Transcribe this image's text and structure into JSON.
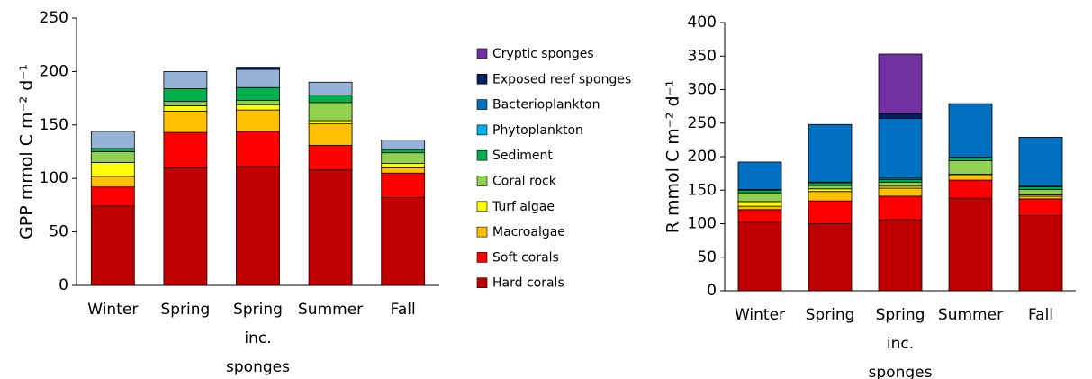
{
  "chart_data": [
    {
      "type": "stacked_bar",
      "ylabel": "GPP mmol C m⁻² d⁻¹",
      "categories": [
        "Winter",
        "Spring",
        "Spring inc. sponges",
        "Summer",
        "Fall"
      ],
      "ylim": [
        0,
        250
      ],
      "yticks": [
        0,
        50,
        100,
        150,
        200,
        250
      ],
      "series": [
        {
          "color": "#c00000",
          "values": [
            74,
            110,
            111,
            108,
            82
          ]
        },
        {
          "color": "#ff0000",
          "values": [
            18,
            33,
            33,
            23,
            23
          ]
        },
        {
          "color": "#ffc000",
          "values": [
            10,
            20,
            20,
            20,
            5
          ]
        },
        {
          "color": "#ffff00",
          "values": [
            13,
            5,
            5,
            3,
            4
          ]
        },
        {
          "color": "#92d050",
          "values": [
            10,
            4,
            4,
            17,
            10
          ]
        },
        {
          "color": "#00b050",
          "values": [
            3,
            12,
            12,
            7,
            3
          ]
        },
        {
          "color": "#95b3d7",
          "values": [
            16,
            16,
            17,
            12,
            9
          ]
        },
        {
          "color": "#002060",
          "values": [
            0,
            0,
            2,
            0,
            0
          ]
        }
      ]
    },
    {
      "type": "stacked_bar",
      "ylabel": "R mmol C m⁻² d⁻¹",
      "categories": [
        "Winter",
        "Spring",
        "Spring inc. sponges",
        "Summer",
        "Fall"
      ],
      "ylim": [
        0,
        400
      ],
      "yticks": [
        0,
        50,
        100,
        150,
        200,
        250,
        300,
        350,
        400
      ],
      "series": [
        {
          "name": "Hard corals",
          "color": "#c00000",
          "values": [
            102,
            100,
            106,
            138,
            112
          ]
        },
        {
          "name": "Soft corals",
          "color": "#ff0000",
          "values": [
            19,
            34,
            35,
            27,
            25
          ]
        },
        {
          "name": "Macroalgae",
          "color": "#ffc000",
          "values": [
            5,
            14,
            12,
            7,
            4
          ]
        },
        {
          "name": "Turf algae",
          "color": "#ffff00",
          "values": [
            7,
            4,
            3,
            2,
            2
          ]
        },
        {
          "name": "Coral rock",
          "color": "#92d050",
          "values": [
            13,
            5,
            6,
            20,
            8
          ]
        },
        {
          "name": "Sediment",
          "color": "#00b050",
          "values": [
            4,
            4,
            4,
            4,
            4
          ]
        },
        {
          "name": "Phytoplankton",
          "color": "#00b0f0",
          "values": [
            1,
            1,
            2,
            1,
            1
          ]
        },
        {
          "name": "Bacterioplankton",
          "color": "#0070c0",
          "values": [
            41,
            86,
            89,
            80,
            73
          ]
        },
        {
          "name": "Exposed reef sponges",
          "color": "#002060",
          "values": [
            0,
            0,
            7,
            0,
            0
          ]
        },
        {
          "name": "Cryptic sponges",
          "color": "#7030a0",
          "values": [
            0,
            0,
            89,
            0,
            0
          ]
        }
      ]
    }
  ]
}
